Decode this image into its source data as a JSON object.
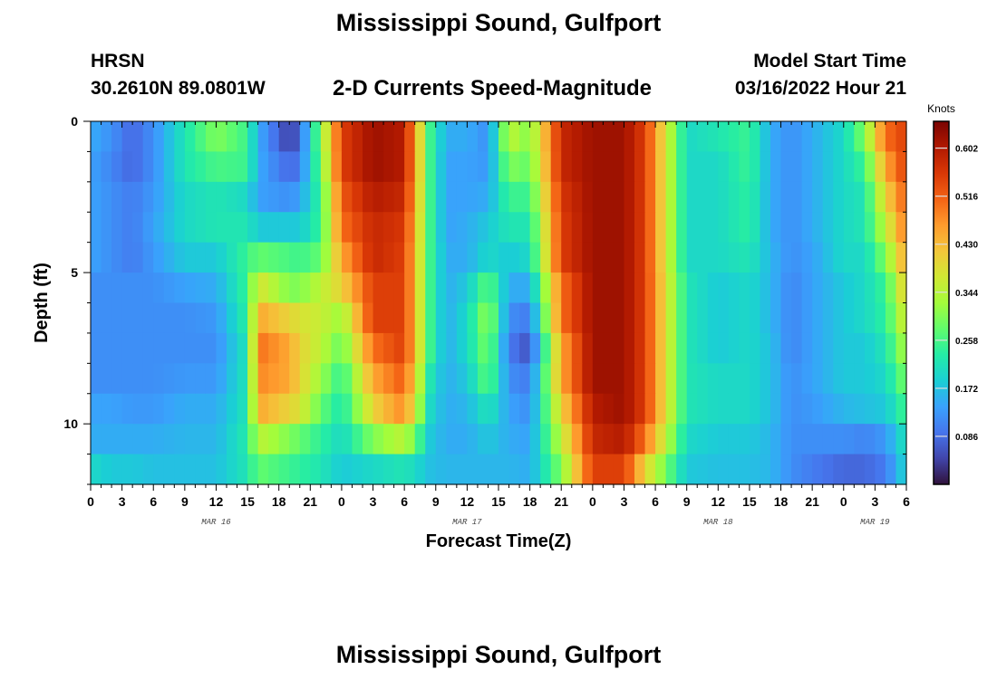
{
  "page": {
    "title": "Mississippi Sound, Gulfport",
    "footer_title": "Mississippi Sound, Gulfport",
    "model": "HRSN",
    "coordinates": "30.2610N  89.0801W",
    "model_start_label": "Model Start Time",
    "model_start_value": "03/16/2022 Hour 21"
  },
  "chart_data": {
    "type": "heatmap",
    "title": "2-D Currents Speed-Magnitude",
    "xlabel": "Forecast Time(Z)",
    "ylabel": "Depth (ft)",
    "x_range_hours": [
      0,
      78
    ],
    "y_range": [
      0,
      12
    ],
    "y_ticks": [
      0,
      5,
      10
    ],
    "x_tick_labels": [
      "0",
      "3",
      "6",
      "9",
      "12",
      "15",
      "18",
      "21",
      "0",
      "3",
      "6",
      "9",
      "12",
      "15",
      "18",
      "21",
      "0",
      "3",
      "6",
      "9",
      "12",
      "15",
      "18",
      "21",
      "0",
      "3",
      "6"
    ],
    "day_labels": [
      {
        "text": "MAR 16",
        "hour": 12
      },
      {
        "text": "MAR 17",
        "hour": 36
      },
      {
        "text": "MAR 18",
        "hour": 60
      },
      {
        "text": "MAR 19",
        "hour": 75
      }
    ],
    "colorbar": {
      "unit": "Knots",
      "ticks": [
        0.086,
        0.172,
        0.258,
        0.344,
        0.43,
        0.516,
        0.602
      ],
      "tick_labels": [
        "0.086",
        "0.172",
        "0.258",
        "0.344",
        "0.430",
        "0.516",
        "0.602"
      ],
      "range": [
        0.0,
        0.65
      ],
      "colormap": [
        "#30123b",
        "#4145ab",
        "#4675ed",
        "#39a2fc",
        "#1bcfd4",
        "#24eca6",
        "#61fc6c",
        "#a4fc3b",
        "#d1e834",
        "#f3c63a",
        "#fe9b2d",
        "#f36315",
        "#d93806",
        "#b11901",
        "#7a0402"
      ]
    },
    "depth_rows_ft": [
      0.5,
      1.5,
      2.5,
      3.5,
      4.5,
      5.5,
      6.5,
      7.5,
      8.5,
      9.5,
      10.5,
      11.5
    ],
    "time_keyframes_hours": [
      0,
      2,
      4,
      6,
      9,
      12,
      15,
      16,
      19,
      20,
      22,
      24,
      27,
      30,
      32.5,
      34,
      36,
      38,
      40,
      42,
      45,
      48,
      51,
      53,
      57,
      60,
      63,
      65,
      67,
      69,
      72,
      74,
      76,
      78
    ],
    "speed_knots_by_depth": [
      [
        0.15,
        0.12,
        0.08,
        0.12,
        0.22,
        0.3,
        0.25,
        0.15,
        0.04,
        0.08,
        0.3,
        0.55,
        0.62,
        0.6,
        0.25,
        0.15,
        0.15,
        0.12,
        0.35,
        0.3,
        0.58,
        0.62,
        0.62,
        0.55,
        0.2,
        0.22,
        0.25,
        0.15,
        0.12,
        0.15,
        0.2,
        0.3,
        0.5,
        0.55
      ],
      [
        0.14,
        0.11,
        0.08,
        0.12,
        0.22,
        0.26,
        0.25,
        0.15,
        0.08,
        0.1,
        0.28,
        0.55,
        0.62,
        0.6,
        0.25,
        0.14,
        0.14,
        0.13,
        0.3,
        0.28,
        0.58,
        0.62,
        0.62,
        0.55,
        0.2,
        0.2,
        0.25,
        0.15,
        0.12,
        0.15,
        0.2,
        0.25,
        0.45,
        0.55
      ],
      [
        0.14,
        0.12,
        0.1,
        0.13,
        0.2,
        0.22,
        0.2,
        0.14,
        0.12,
        0.14,
        0.25,
        0.52,
        0.6,
        0.58,
        0.25,
        0.14,
        0.14,
        0.15,
        0.25,
        0.25,
        0.56,
        0.62,
        0.62,
        0.55,
        0.2,
        0.2,
        0.24,
        0.15,
        0.12,
        0.15,
        0.2,
        0.22,
        0.4,
        0.52
      ],
      [
        0.14,
        0.12,
        0.1,
        0.14,
        0.2,
        0.22,
        0.22,
        0.18,
        0.18,
        0.18,
        0.25,
        0.5,
        0.58,
        0.56,
        0.25,
        0.14,
        0.15,
        0.18,
        0.22,
        0.22,
        0.55,
        0.62,
        0.62,
        0.55,
        0.2,
        0.2,
        0.24,
        0.15,
        0.12,
        0.15,
        0.2,
        0.22,
        0.35,
        0.5
      ],
      [
        0.14,
        0.12,
        0.1,
        0.13,
        0.18,
        0.18,
        0.25,
        0.28,
        0.26,
        0.25,
        0.28,
        0.45,
        0.58,
        0.55,
        0.25,
        0.15,
        0.15,
        0.2,
        0.18,
        0.2,
        0.55,
        0.62,
        0.62,
        0.55,
        0.2,
        0.2,
        0.22,
        0.16,
        0.12,
        0.14,
        0.2,
        0.2,
        0.3,
        0.46
      ],
      [
        0.12,
        0.12,
        0.12,
        0.12,
        0.14,
        0.15,
        0.25,
        0.38,
        0.3,
        0.3,
        0.35,
        0.4,
        0.55,
        0.55,
        0.25,
        0.15,
        0.18,
        0.28,
        0.15,
        0.15,
        0.5,
        0.62,
        0.62,
        0.55,
        0.22,
        0.18,
        0.2,
        0.16,
        0.11,
        0.14,
        0.18,
        0.2,
        0.25,
        0.42
      ],
      [
        0.12,
        0.12,
        0.12,
        0.12,
        0.12,
        0.13,
        0.24,
        0.45,
        0.4,
        0.38,
        0.36,
        0.32,
        0.55,
        0.55,
        0.25,
        0.15,
        0.2,
        0.32,
        0.12,
        0.1,
        0.5,
        0.62,
        0.62,
        0.55,
        0.22,
        0.18,
        0.2,
        0.16,
        0.11,
        0.14,
        0.18,
        0.2,
        0.24,
        0.38
      ],
      [
        0.12,
        0.12,
        0.12,
        0.12,
        0.12,
        0.12,
        0.22,
        0.5,
        0.45,
        0.4,
        0.35,
        0.28,
        0.5,
        0.55,
        0.25,
        0.15,
        0.2,
        0.3,
        0.1,
        0.06,
        0.45,
        0.62,
        0.62,
        0.55,
        0.22,
        0.18,
        0.2,
        0.17,
        0.11,
        0.14,
        0.18,
        0.18,
        0.22,
        0.34
      ],
      [
        0.12,
        0.12,
        0.12,
        0.12,
        0.13,
        0.13,
        0.22,
        0.48,
        0.45,
        0.4,
        0.32,
        0.24,
        0.45,
        0.52,
        0.22,
        0.15,
        0.18,
        0.28,
        0.12,
        0.1,
        0.45,
        0.62,
        0.62,
        0.55,
        0.22,
        0.2,
        0.2,
        0.17,
        0.12,
        0.14,
        0.18,
        0.18,
        0.2,
        0.3
      ],
      [
        0.14,
        0.14,
        0.13,
        0.13,
        0.15,
        0.15,
        0.22,
        0.45,
        0.4,
        0.38,
        0.28,
        0.22,
        0.4,
        0.48,
        0.2,
        0.15,
        0.16,
        0.22,
        0.14,
        0.12,
        0.4,
        0.6,
        0.62,
        0.55,
        0.22,
        0.2,
        0.2,
        0.17,
        0.12,
        0.13,
        0.16,
        0.17,
        0.18,
        0.26
      ],
      [
        0.15,
        0.15,
        0.15,
        0.15,
        0.16,
        0.16,
        0.23,
        0.35,
        0.3,
        0.28,
        0.24,
        0.2,
        0.3,
        0.35,
        0.18,
        0.15,
        0.15,
        0.18,
        0.15,
        0.14,
        0.35,
        0.58,
        0.6,
        0.5,
        0.2,
        0.18,
        0.18,
        0.16,
        0.12,
        0.12,
        0.12,
        0.11,
        0.13,
        0.22
      ],
      [
        0.2,
        0.18,
        0.18,
        0.17,
        0.17,
        0.17,
        0.22,
        0.28,
        0.25,
        0.24,
        0.22,
        0.18,
        0.2,
        0.22,
        0.17,
        0.16,
        0.16,
        0.16,
        0.16,
        0.15,
        0.3,
        0.55,
        0.55,
        0.4,
        0.18,
        0.17,
        0.17,
        0.16,
        0.12,
        0.1,
        0.08,
        0.08,
        0.1,
        0.2
      ]
    ]
  }
}
